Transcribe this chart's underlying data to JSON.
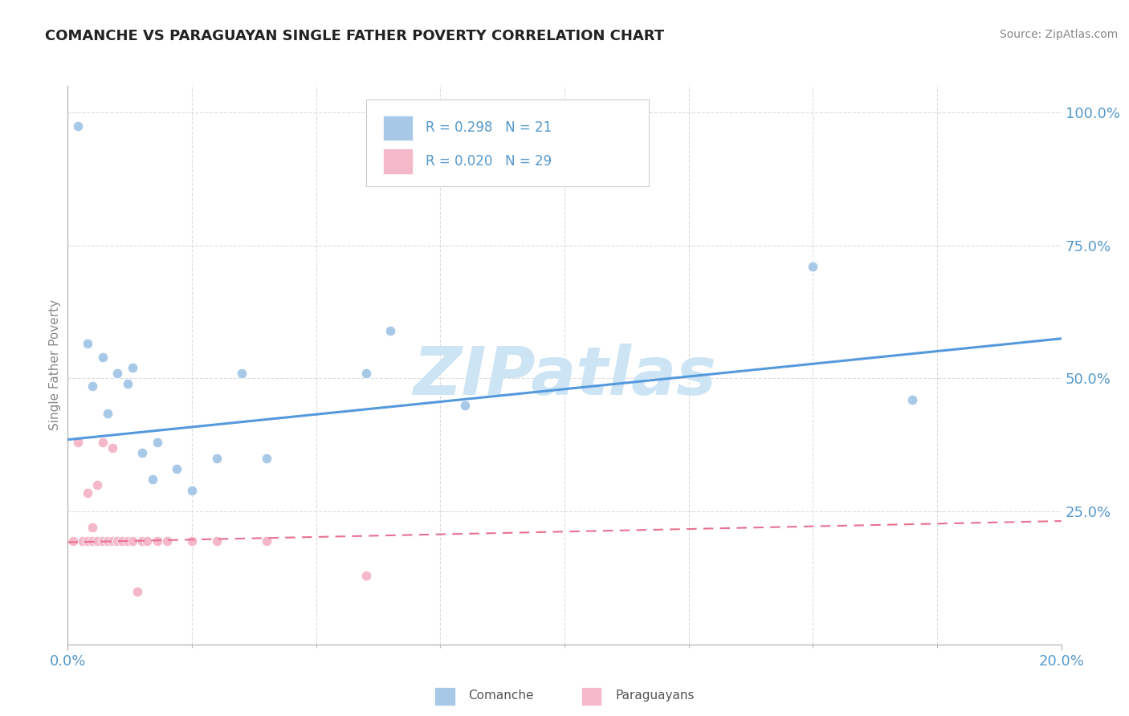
{
  "title": "COMANCHE VS PARAGUAYAN SINGLE FATHER POVERTY CORRELATION CHART",
  "source": "Source: ZipAtlas.com",
  "ylabel": "Single Father Poverty",
  "comanche_color": "#a8c8e8",
  "paraguayan_color": "#f4b8c8",
  "trend_comanche_color": "#5599dd",
  "trend_paraguayan_color": "#e87090",
  "comanche_x": [
    0.002,
    0.004,
    0.005,
    0.007,
    0.008,
    0.01,
    0.012,
    0.013,
    0.015,
    0.017,
    0.018,
    0.022,
    0.025,
    0.03,
    0.035,
    0.04,
    0.06,
    0.065,
    0.08,
    0.15,
    0.17
  ],
  "comanche_y": [
    0.975,
    0.565,
    0.485,
    0.54,
    0.435,
    0.51,
    0.49,
    0.52,
    0.36,
    0.31,
    0.38,
    0.33,
    0.29,
    0.35,
    0.51,
    0.35,
    0.51,
    0.59,
    0.45,
    0.71,
    0.46
  ],
  "paraguayan_x": [
    0.001,
    0.002,
    0.003,
    0.004,
    0.004,
    0.005,
    0.005,
    0.006,
    0.006,
    0.007,
    0.007,
    0.008,
    0.008,
    0.009,
    0.009,
    0.01,
    0.01,
    0.011,
    0.012,
    0.013,
    0.014,
    0.015,
    0.016,
    0.018,
    0.02,
    0.025,
    0.03,
    0.04,
    0.06
  ],
  "paraguayan_y": [
    0.195,
    0.38,
    0.195,
    0.285,
    0.195,
    0.195,
    0.22,
    0.195,
    0.3,
    0.195,
    0.38,
    0.195,
    0.195,
    0.195,
    0.37,
    0.195,
    0.195,
    0.195,
    0.195,
    0.195,
    0.1,
    0.195,
    0.195,
    0.195,
    0.195,
    0.195,
    0.195,
    0.195,
    0.13
  ],
  "comanche_trend": [
    0.0,
    0.2,
    0.385,
    0.575
  ],
  "paraguayan_trend": [
    0.0,
    0.2,
    0.192,
    0.232
  ],
  "xlim": [
    0.0,
    0.2
  ],
  "ylim": [
    0.0,
    1.05
  ],
  "watermark": "ZIPatlas",
  "watermark_color": "#cce4f4",
  "background_color": "#ffffff",
  "grid_color": "#dddddd",
  "tick_color": "#5599cc",
  "title_color": "#222222",
  "source_color": "#888888",
  "ylabel_color": "#888888"
}
